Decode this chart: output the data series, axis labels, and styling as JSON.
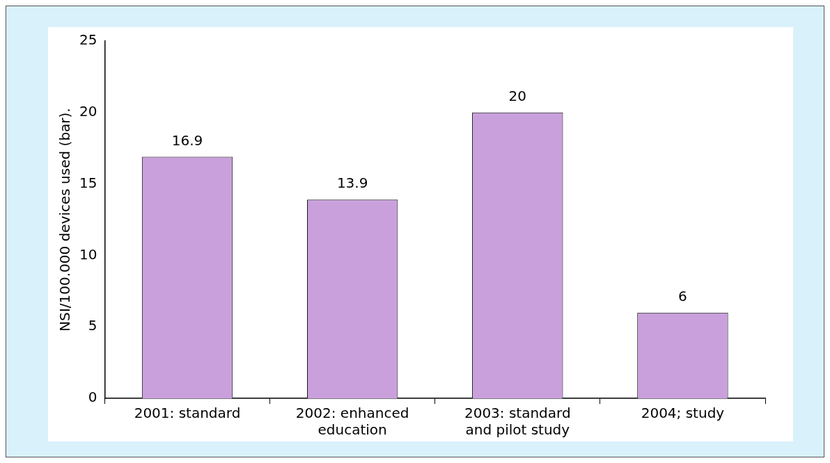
{
  "chart_data": {
    "type": "bar",
    "ylabel": "NSI/100.000 devices used (bar).",
    "categories": [
      "2001: standard",
      "2002: enhanced education",
      "2003: standard and pilot study",
      "2004; study"
    ],
    "values": [
      16.9,
      13.9,
      20,
      6
    ],
    "color": "#c9a0dc",
    "ylim": [
      0,
      25
    ],
    "yticks": [
      0,
      5,
      10,
      15,
      20,
      25
    ],
    "grid": false,
    "legend": false,
    "data_labels": true
  }
}
